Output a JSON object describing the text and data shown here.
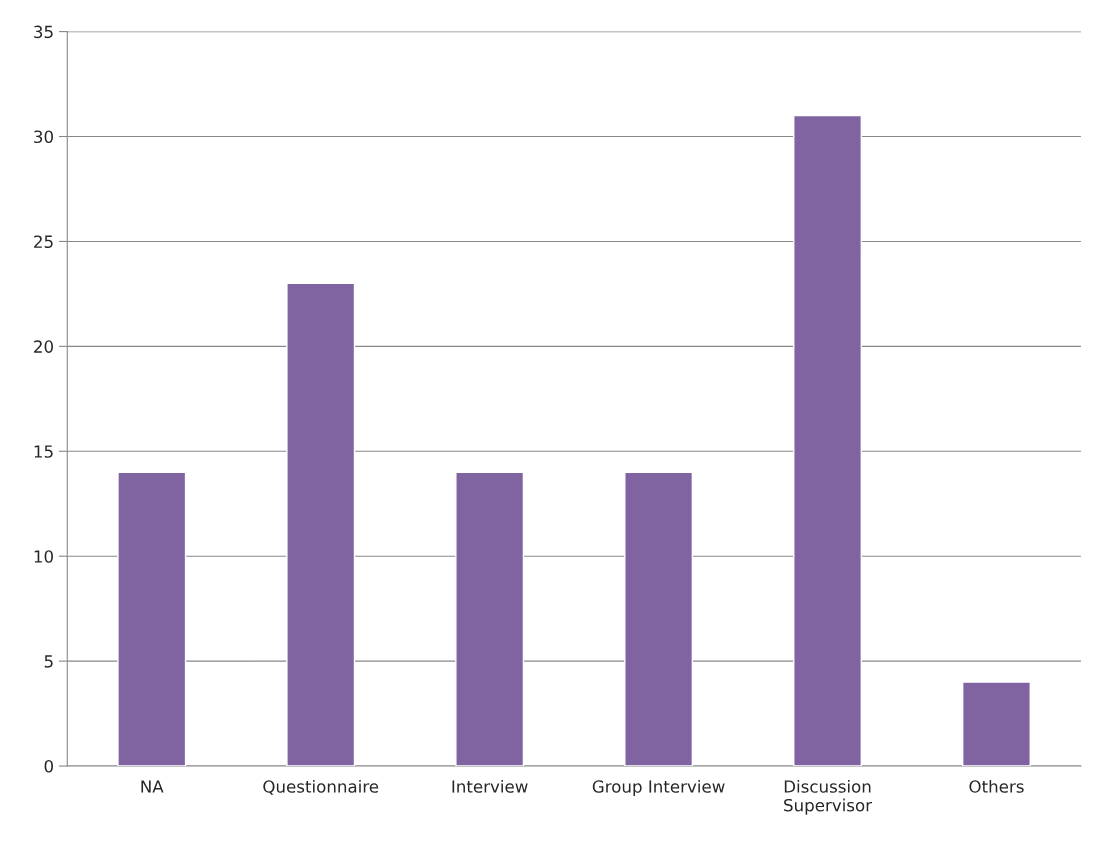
{
  "chart_data": {
    "type": "bar",
    "categories": [
      "NA",
      "Questionnaire",
      "Interview",
      "Group Interview",
      "Discussion\nSupervisor",
      "Others"
    ],
    "values": [
      14,
      23,
      14,
      14,
      31,
      4
    ],
    "color": "#8064a2",
    "ylim": [
      0,
      35
    ],
    "yticks": [
      0,
      5,
      10,
      15,
      20,
      25,
      30,
      35
    ],
    "grid": "y",
    "legend": false
  }
}
